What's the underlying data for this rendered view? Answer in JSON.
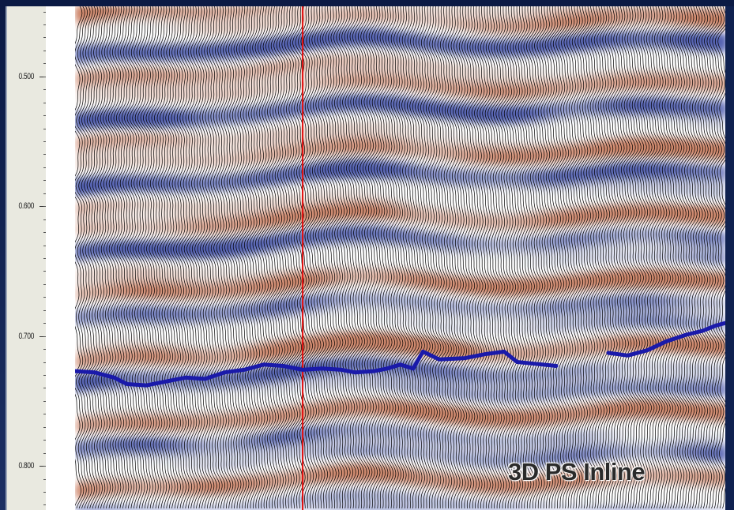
{
  "window": {
    "frame_color": "#14244a"
  },
  "time_axis": {
    "ticks": [
      {
        "value": 0.5,
        "label": "0.500"
      },
      {
        "value": 0.6,
        "label": "0.600"
      },
      {
        "value": 0.7,
        "label": "0.700"
      },
      {
        "value": 0.8,
        "label": "0.800"
      }
    ],
    "range": [
      0.446,
      0.834
    ]
  },
  "section": {
    "title": "3D PS Inline",
    "trace_count": 240,
    "positive_color": "#c8785a",
    "negative_color": "#3f4fa8",
    "wiggle_color": "#000000",
    "marker_line_color": "#e31010",
    "marker_trace_fraction": 0.35,
    "horizon": {
      "color": "#1a1aaa",
      "segments": [
        [
          [
            0.0,
            0.727
          ],
          [
            0.03,
            0.728
          ],
          [
            0.06,
            0.732
          ],
          [
            0.08,
            0.737
          ],
          [
            0.11,
            0.738
          ],
          [
            0.14,
            0.735
          ],
          [
            0.17,
            0.732
          ],
          [
            0.2,
            0.733
          ],
          [
            0.23,
            0.728
          ],
          [
            0.26,
            0.726
          ],
          [
            0.29,
            0.722
          ],
          [
            0.32,
            0.723
          ],
          [
            0.35,
            0.726
          ],
          [
            0.38,
            0.725
          ],
          [
            0.41,
            0.726
          ],
          [
            0.43,
            0.728
          ],
          [
            0.46,
            0.727
          ],
          [
            0.48,
            0.725
          ],
          [
            0.5,
            0.722
          ],
          [
            0.52,
            0.725
          ],
          [
            0.535,
            0.712
          ],
          [
            0.56,
            0.718
          ],
          [
            0.6,
            0.717
          ],
          [
            0.63,
            0.714
          ],
          [
            0.66,
            0.712
          ],
          [
            0.68,
            0.72
          ],
          [
            0.7,
            0.721
          ],
          [
            0.74,
            0.723
          ]
        ],
        [
          [
            0.82,
            0.713
          ],
          [
            0.85,
            0.715
          ],
          [
            0.88,
            0.711
          ],
          [
            0.91,
            0.704
          ],
          [
            0.94,
            0.699
          ],
          [
            0.965,
            0.696
          ],
          [
            0.985,
            0.692
          ],
          [
            1.0,
            0.69
          ]
        ]
      ]
    }
  }
}
